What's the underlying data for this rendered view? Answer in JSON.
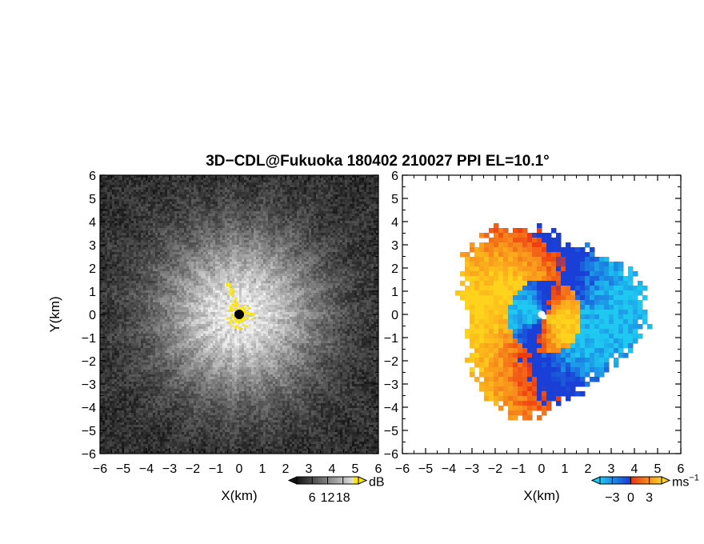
{
  "title": "3D−CDL@Fukuoka 180402 210027 PPI EL=10.1°",
  "colors": {
    "reflectivity_dark": "#141414",
    "reflectivity_bright": "#f2f2f2",
    "yellow": "#ffe600",
    "velocity_deep_blue": "#1a3fd6",
    "velocity_cyan": "#1ec8f0",
    "velocity_red": "#ee3a10",
    "velocity_orange": "#f7901c",
    "velocity_yellow": "#ffd21c"
  },
  "chart_data": [
    {
      "type": "heatmap",
      "name": "reflectivity",
      "xlabel": "X(km)",
      "ylabel": "Y(km)",
      "xlim": [
        -6,
        6
      ],
      "ylim": [
        -6,
        6
      ],
      "xticks": [
        "−6",
        "−5",
        "−4",
        "−3",
        "−2",
        "−1",
        "0",
        "1",
        "2",
        "3",
        "4",
        "5",
        "6"
      ],
      "yticks": [
        "6",
        "5",
        "4",
        "3",
        "2",
        "1",
        "0",
        "−1",
        "−2",
        "−3",
        "−4",
        "−5",
        "−6"
      ],
      "colorbar": {
        "unit": "dB",
        "ticks": [
          "6",
          "12",
          "18"
        ],
        "tick_values": [
          6,
          12,
          18
        ],
        "range": [
          0,
          24
        ]
      }
    },
    {
      "type": "heatmap",
      "name": "doppler-velocity",
      "xlabel": "X(km)",
      "ylabel": "",
      "xlim": [
        -6,
        6
      ],
      "ylim": [
        -6,
        6
      ],
      "xticks": [
        "−6",
        "−5",
        "−4",
        "−3",
        "−2",
        "−1",
        "0",
        "1",
        "2",
        "3",
        "4",
        "5",
        "6"
      ],
      "yticks": [
        "6",
        "5",
        "4",
        "3",
        "2",
        "1",
        "0",
        "−1",
        "−2",
        "−3",
        "−4",
        "−5",
        "−6"
      ],
      "colorbar": {
        "unit": "ms",
        "unit_exponent": "−1",
        "ticks": [
          "−3",
          "0",
          "3"
        ],
        "tick_values": [
          -3,
          0,
          3
        ],
        "range": [
          -5,
          5
        ]
      }
    }
  ]
}
